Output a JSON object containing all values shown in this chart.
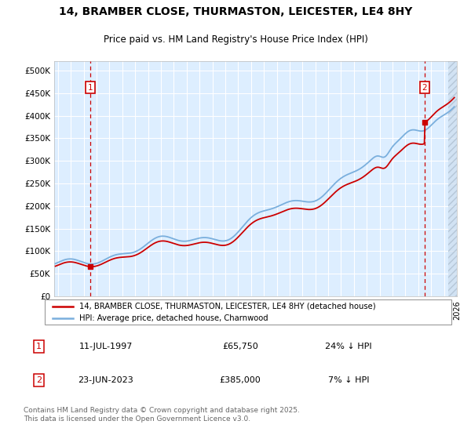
{
  "title_line1": "14, BRAMBER CLOSE, THURMASTON, LEICESTER, LE4 8HY",
  "title_line2": "Price paid vs. HM Land Registry's House Price Index (HPI)",
  "xlim_start": 1994.7,
  "xlim_end": 2026.0,
  "ylim_min": 0,
  "ylim_max": 520000,
  "yticks": [
    0,
    50000,
    100000,
    150000,
    200000,
    250000,
    300000,
    350000,
    400000,
    450000,
    500000
  ],
  "ytick_labels": [
    "£0",
    "£50K",
    "£100K",
    "£150K",
    "£200K",
    "£250K",
    "£300K",
    "£350K",
    "£400K",
    "£450K",
    "£500K"
  ],
  "purchase1_x": 1997.53,
  "purchase1_y": 65750,
  "purchase2_x": 2023.48,
  "purchase2_y": 385000,
  "legend_line1": "14, BRAMBER CLOSE, THURMASTON, LEICESTER, LE4 8HY (detached house)",
  "legend_line2": "HPI: Average price, detached house, Charnwood",
  "annotation1_date": "11-JUL-1997",
  "annotation1_price": "£65,750",
  "annotation1_hpi": "24% ↓ HPI",
  "annotation2_date": "23-JUN-2023",
  "annotation2_price": "£385,000",
  "annotation2_hpi": "7% ↓ HPI",
  "footer": "Contains HM Land Registry data © Crown copyright and database right 2025.\nThis data is licensed under the Open Government Licence v3.0.",
  "plot_color_red": "#cc0000",
  "plot_color_blue": "#7aafdd",
  "bg_color": "#ddeeff",
  "grid_color": "#ffffff",
  "vline_color": "#cc0000",
  "box_color": "#cc0000",
  "hatch_start": 2025.3,
  "hatch_end": 2026.5
}
